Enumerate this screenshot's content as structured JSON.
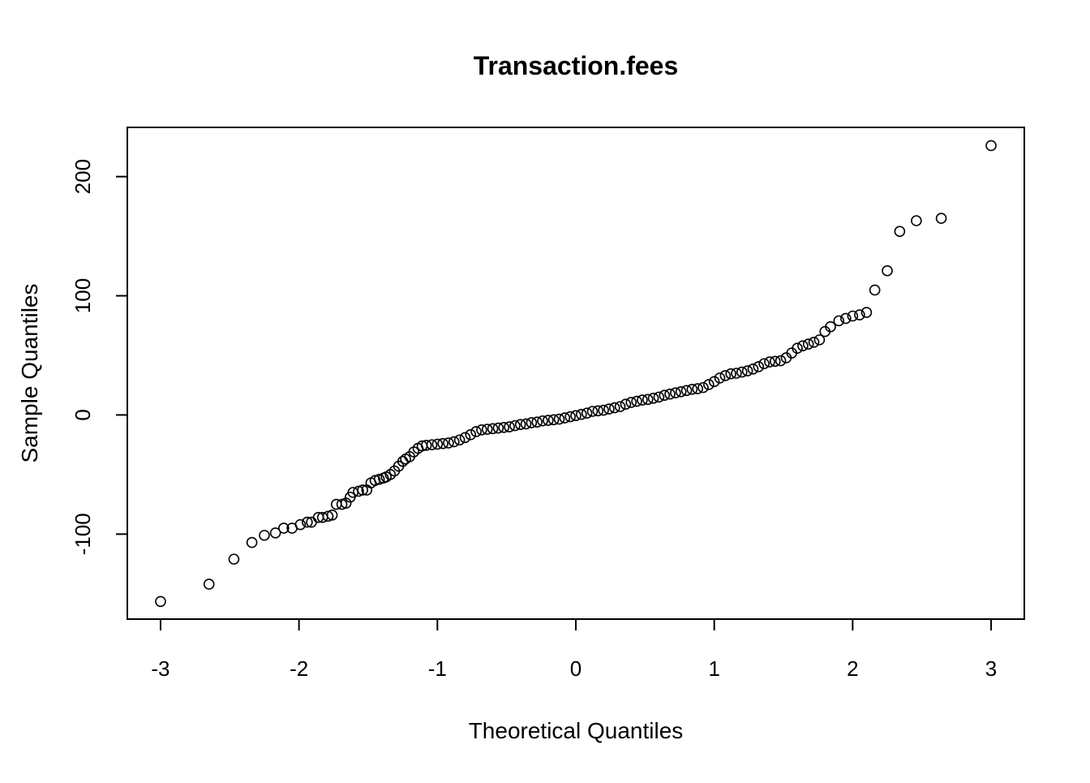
{
  "chart_data": {
    "type": "scatter",
    "title": "Transaction.fees",
    "xlabel": "Theoretical Quantiles",
    "ylabel": "Sample Quantiles",
    "xlim": [
      -3.24,
      3.24
    ],
    "ylim": [
      -171.3,
      241.3
    ],
    "xticks": [
      -3,
      -2,
      -1,
      0,
      1,
      2,
      3
    ],
    "yticks": [
      -100,
      0,
      100,
      200
    ],
    "color": "#000000",
    "x": [
      -3.0,
      -2.65,
      -2.47,
      -2.34,
      -2.25,
      -2.17,
      -2.11,
      -2.05,
      -1.99,
      -1.94,
      -1.91,
      -1.86,
      -1.83,
      -1.79,
      -1.76,
      -1.73,
      -1.69,
      -1.66,
      -1.63,
      -1.61,
      -1.57,
      -1.54,
      -1.51,
      -1.48,
      -1.45,
      -1.42,
      -1.39,
      -1.37,
      -1.34,
      -1.31,
      -1.28,
      -1.25,
      -1.23,
      -1.2,
      -1.17,
      -1.14,
      -1.11,
      -1.08,
      -1.04,
      -1.0,
      -0.96,
      -0.92,
      -0.88,
      -0.84,
      -0.8,
      -0.76,
      -0.72,
      -0.68,
      -0.64,
      -0.6,
      -0.56,
      -0.52,
      -0.48,
      -0.44,
      -0.4,
      -0.36,
      -0.32,
      -0.28,
      -0.24,
      -0.2,
      -0.16,
      -0.12,
      -0.08,
      -0.04,
      0,
      0.04,
      0.08,
      0.12,
      0.16,
      0.2,
      0.24,
      0.28,
      0.32,
      0.36,
      0.4,
      0.44,
      0.48,
      0.52,
      0.56,
      0.6,
      0.64,
      0.68,
      0.72,
      0.76,
      0.8,
      0.84,
      0.88,
      0.92,
      0.96,
      1.0,
      1.04,
      1.08,
      1.12,
      1.16,
      1.2,
      1.24,
      1.28,
      1.32,
      1.36,
      1.4,
      1.44,
      1.48,
      1.52,
      1.56,
      1.6,
      1.64,
      1.68,
      1.72,
      1.76,
      1.8,
      1.84,
      1.9,
      1.95,
      2.0,
      2.05,
      2.1,
      2.16,
      2.25,
      2.34,
      2.46,
      2.64,
      3.0
    ],
    "y": [
      -156.5,
      -142,
      -121,
      -107,
      -101,
      -99,
      -95,
      -95,
      -92,
      -90,
      -90,
      -86,
      -86,
      -85,
      -84,
      -75,
      -75,
      -74,
      -69,
      -65,
      -64,
      -63,
      -63,
      -57,
      -55,
      -54,
      -53,
      -52,
      -50,
      -47,
      -43,
      -39,
      -37,
      -35,
      -31,
      -28,
      -26,
      -25.5,
      -25,
      -24.5,
      -24,
      -23.5,
      -22.5,
      -21,
      -19,
      -16.5,
      -14,
      -12.5,
      -12,
      -11.5,
      -11,
      -10.5,
      -10,
      -9,
      -8,
      -7.5,
      -6.5,
      -6,
      -5,
      -4.5,
      -4,
      -3.5,
      -2.5,
      -1.5,
      -0.5,
      0.5,
      1.5,
      3,
      3.5,
      4,
      5,
      6,
      7,
      9,
      10.5,
      11.5,
      12.5,
      13,
      14,
      15,
      16.5,
      17.5,
      18.5,
      19.5,
      20.5,
      21.5,
      22,
      23,
      25.5,
      28,
      31,
      33,
      34.5,
      35,
      36,
      37,
      38.5,
      40.5,
      43,
      44.5,
      45,
      45.5,
      48,
      52,
      56,
      58,
      59.5,
      61,
      63,
      70,
      74,
      79,
      81,
      83,
      84,
      86,
      104.8,
      121,
      154,
      163,
      165,
      226
    ]
  }
}
